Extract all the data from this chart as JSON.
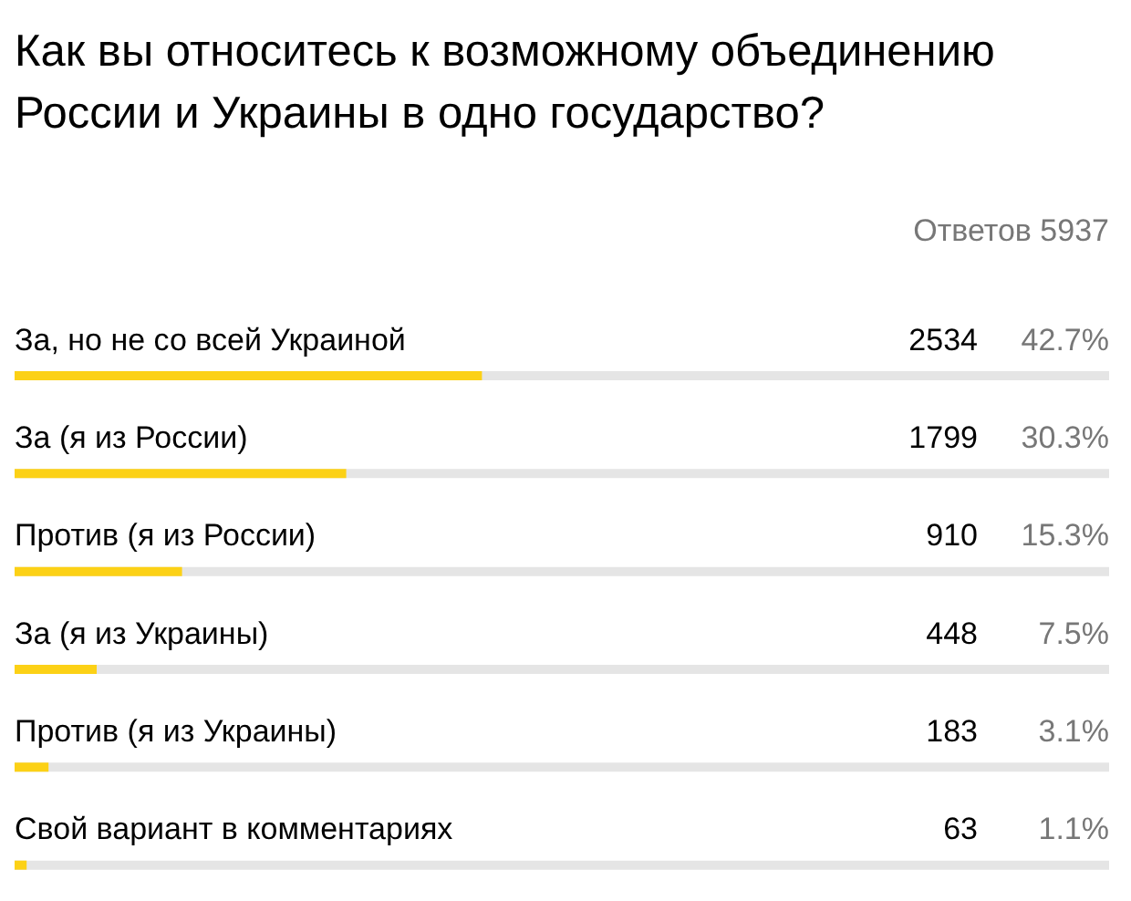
{
  "chart_data": {
    "type": "bar",
    "orientation": "horizontal",
    "title": "Как вы относитесь к возможному объединению России и Украины в одно государство?",
    "subtitle": "Ответов 5937",
    "categories": [
      "За, но не со всей Украиной",
      "За (я из России)",
      "Против (я из России)",
      "За (я из Украины)",
      "Против (я из Украины)",
      "Свой вариант в комментариях"
    ],
    "values": [
      42.7,
      30.3,
      15.3,
      7.5,
      3.1,
      1.1
    ],
    "value_labels": [
      "42.7%",
      "30.3%",
      "15.3%",
      "7.5%",
      "3.1%",
      "1.1%"
    ],
    "annotations": [
      "2534",
      "1799",
      "910",
      "448",
      "183",
      "63"
    ],
    "color": "#fcd116"
  }
}
